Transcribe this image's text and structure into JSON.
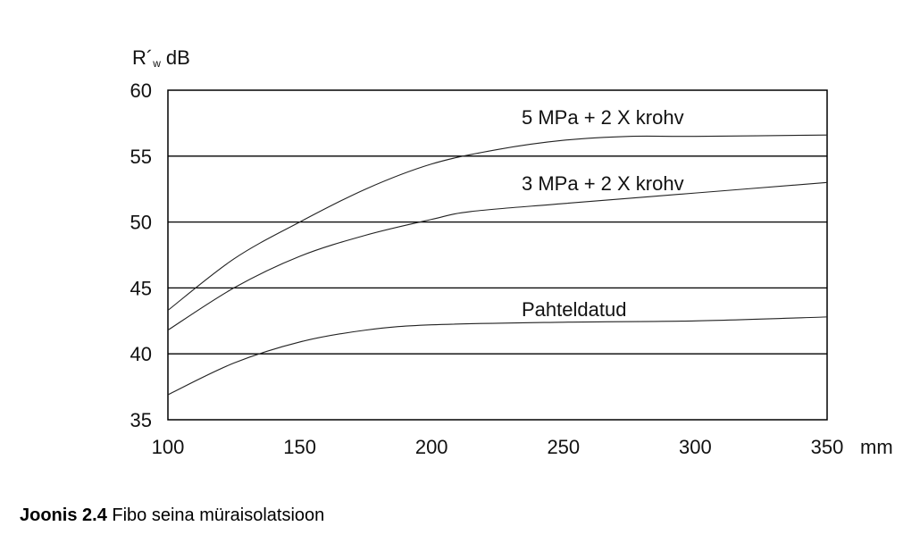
{
  "chart_data": {
    "type": "line",
    "title": "",
    "ylabel": "R´w dB",
    "ylabel_main": "R´",
    "ylabel_sub": "w",
    "ylabel_unit": "dB",
    "xlabel_unit": "mm",
    "xlim": [
      100,
      350
    ],
    "ylim": [
      35,
      60
    ],
    "xticks": [
      100,
      150,
      200,
      250,
      300,
      350
    ],
    "yticks": [
      35,
      40,
      45,
      50,
      55,
      60
    ],
    "grid": "horizontal",
    "series": [
      {
        "name": "5 MPa + 2 X krohv",
        "x": [
          100,
          125,
          150,
          175,
          200,
          225,
          250,
          275,
          300,
          350
        ],
        "y": [
          43.3,
          47.2,
          50.0,
          52.5,
          54.4,
          55.5,
          56.2,
          56.5,
          56.5,
          56.6
        ]
      },
      {
        "name": "3 MPa + 2 X krohv",
        "x": [
          100,
          125,
          150,
          175,
          200,
          215,
          250,
          300,
          350
        ],
        "y": [
          41.8,
          45.0,
          47.4,
          49.0,
          50.2,
          50.8,
          51.4,
          52.2,
          53.0
        ]
      },
      {
        "name": "Pahteldatud",
        "x": [
          100,
          125,
          150,
          175,
          200,
          250,
          300,
          350
        ],
        "y": [
          36.9,
          39.3,
          40.9,
          41.8,
          42.2,
          42.4,
          42.5,
          42.8
        ]
      }
    ]
  },
  "caption": {
    "label": "Joonis 2.4",
    "text": " Fibo seina müraisolatsioon"
  }
}
